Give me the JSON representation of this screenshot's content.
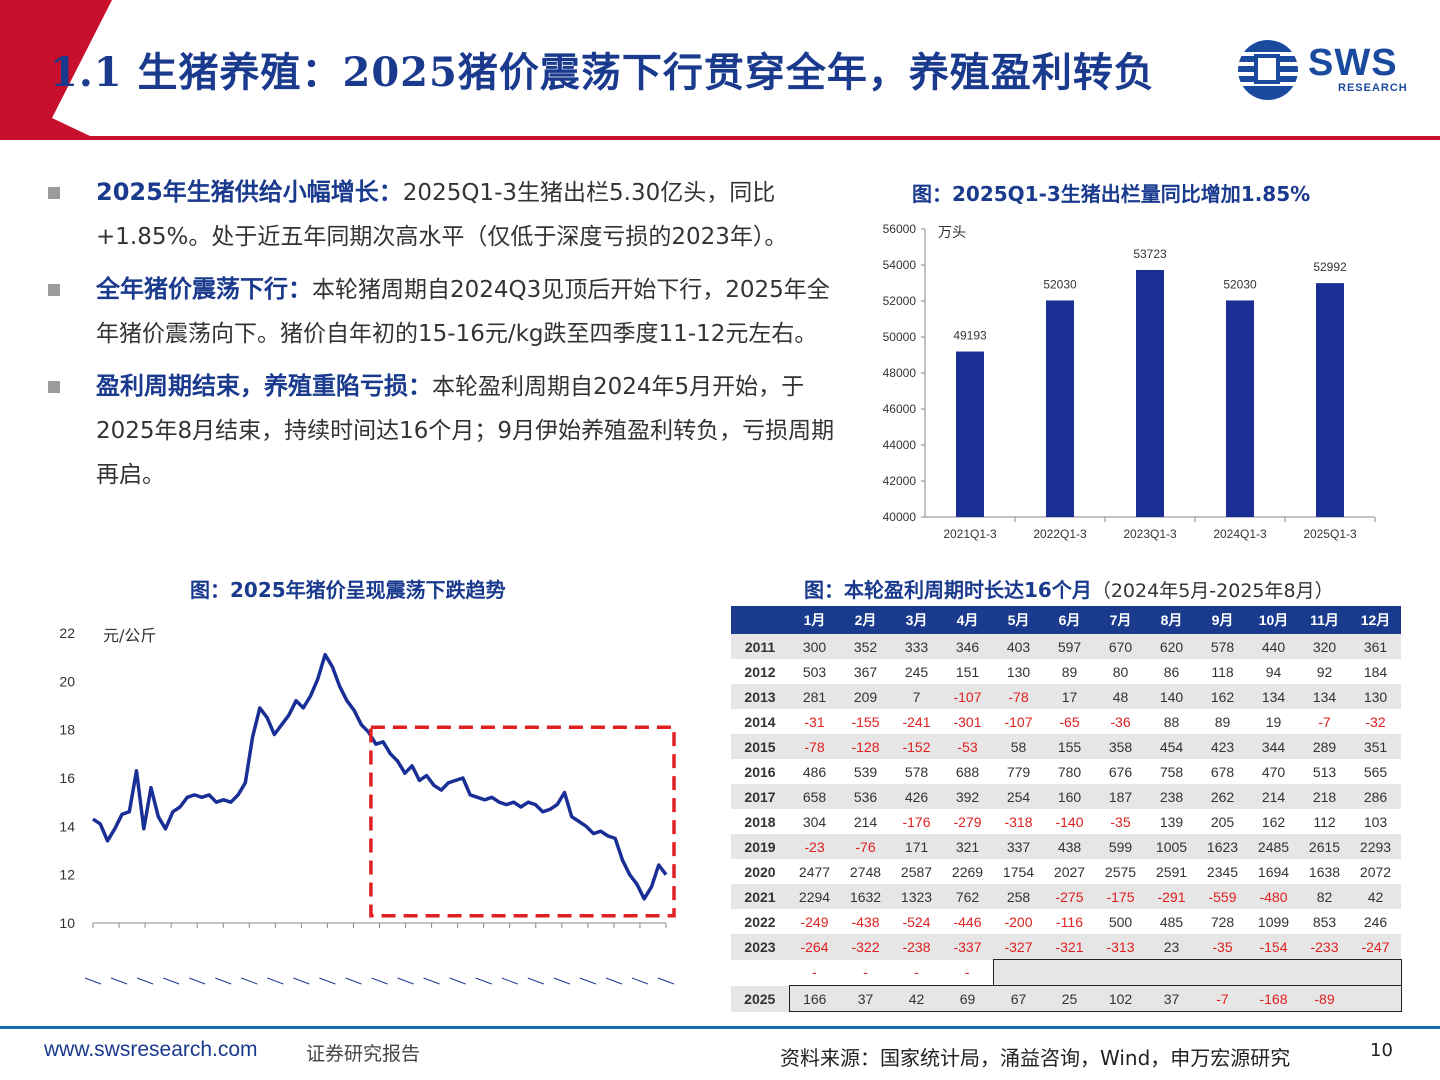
{
  "header": {
    "title": "1.1 生猪养殖：2025猪价震荡下行贯穿全年，养殖盈利转负",
    "logo_text": "SWS",
    "logo_sub": "RESEARCH",
    "colors": {
      "accent_red": "#c8102e",
      "brand_blue": "#1a3a8e"
    }
  },
  "bullets": [
    {
      "highlight": "2025年生猪供给小幅增长：",
      "text": "2025Q1-3生猪出栏5.30亿头，同比+1.85%。处于近五年同期次高水平（仅低于深度亏损的2023年）。"
    },
    {
      "highlight": "全年猪价震荡下行：",
      "text": "本轮猪周期自2024Q3见顶后开始下行，2025年全年猪价震荡向下。猪价自年初的15-16元/kg跌至四季度11-12元左右。"
    },
    {
      "highlight": "盈利周期结束，养殖重陷亏损：",
      "text": "本轮盈利周期自2024年5月开始，于2025年8月结束，持续时间达16个月；9月伊始养殖盈利转负，亏损周期再启。"
    }
  ],
  "charts": {
    "bar_title": "图：2025Q1-3生猪出栏量同比增加1.85%",
    "line_title": "图：2025年猪价呈现震荡下跌趋势",
    "table_title": "图：本轮盈利周期时长达16个月",
    "table_subtitle": "（2024年5月-2025年8月）"
  },
  "chart_data": [
    {
      "type": "bar",
      "categories": [
        "2021Q1-3",
        "2022Q1-3",
        "2023Q1-3",
        "2024Q1-3",
        "2025Q1-3"
      ],
      "values": [
        49193,
        52030,
        53723,
        52030,
        52992
      ],
      "ylabel": "万头",
      "ylim": [
        40000,
        56000
      ],
      "yticks": [
        40000,
        42000,
        44000,
        46000,
        48000,
        50000,
        52000,
        54000,
        56000
      ],
      "bar_color": "#1a2f96"
    },
    {
      "type": "line",
      "ylabel": "元/公斤",
      "ylim": [
        10,
        22
      ],
      "yticks": [
        10,
        12,
        14,
        16,
        18,
        20,
        22
      ],
      "line_color": "#1a2f96",
      "highlight_box_color": "#e02020",
      "y": [
        14.3,
        14.1,
        13.4,
        13.9,
        14.5,
        14.6,
        16.3,
        13.9,
        15.6,
        14.4,
        13.9,
        14.6,
        14.8,
        15.2,
        15.3,
        15.2,
        15.3,
        15.0,
        15.1,
        15.0,
        15.3,
        15.8,
        17.7,
        18.9,
        18.5,
        17.8,
        18.2,
        18.6,
        19.2,
        18.9,
        19.4,
        20.1,
        21.1,
        20.6,
        19.8,
        19.2,
        18.8,
        18.2,
        17.9,
        17.4,
        17.5,
        17.0,
        16.7,
        16.2,
        16.5,
        15.9,
        16.1,
        15.7,
        15.5,
        15.8,
        15.9,
        16.0,
        15.3,
        15.2,
        15.1,
        15.2,
        15.0,
        14.9,
        15.0,
        14.8,
        15.0,
        14.9,
        14.6,
        14.7,
        14.9,
        15.4,
        14.4,
        14.2,
        14.0,
        13.7,
        13.8,
        13.6,
        13.5,
        12.6,
        12.0,
        11.6,
        11.0,
        11.5,
        12.4,
        12.0
      ]
    },
    {
      "type": "table",
      "columns": [
        "",
        "1月",
        "2月",
        "3月",
        "4月",
        "5月",
        "6月",
        "7月",
        "8月",
        "9月",
        "10月",
        "11月",
        "12月"
      ],
      "rows": [
        [
          "2011",
          "300",
          "352",
          "333",
          "346",
          "403",
          "597",
          "670",
          "620",
          "578",
          "440",
          "320",
          "361"
        ],
        [
          "2012",
          "503",
          "367",
          "245",
          "151",
          "130",
          "89",
          "80",
          "86",
          "118",
          "94",
          "92",
          "184"
        ],
        [
          "2013",
          "281",
          "209",
          "7",
          "-107",
          "-78",
          "17",
          "48",
          "140",
          "162",
          "134",
          "134",
          "130"
        ],
        [
          "2014",
          "-31",
          "-155",
          "-241",
          "-301",
          "-107",
          "-65",
          "-36",
          "88",
          "89",
          "19",
          "-7",
          "-32"
        ],
        [
          "2015",
          "-78",
          "-128",
          "-152",
          "-53",
          "58",
          "155",
          "358",
          "454",
          "423",
          "344",
          "289",
          "351"
        ],
        [
          "2016",
          "486",
          "539",
          "578",
          "688",
          "779",
          "780",
          "676",
          "758",
          "678",
          "470",
          "513",
          "565"
        ],
        [
          "2017",
          "658",
          "536",
          "426",
          "392",
          "254",
          "160",
          "187",
          "238",
          "262",
          "214",
          "218",
          "286"
        ],
        [
          "2018",
          "304",
          "214",
          "-176",
          "-279",
          "-318",
          "-140",
          "-35",
          "139",
          "205",
          "162",
          "112",
          "103"
        ],
        [
          "2019",
          "-23",
          "-76",
          "171",
          "321",
          "337",
          "438",
          "599",
          "1005",
          "1623",
          "2485",
          "2615",
          "2293"
        ],
        [
          "2020",
          "2477",
          "2748",
          "2587",
          "2269",
          "1754",
          "2027",
          "2575",
          "2591",
          "2345",
          "1694",
          "1638",
          "2072"
        ],
        [
          "2021",
          "2294",
          "1632",
          "1323",
          "762",
          "258",
          "-275",
          "-175",
          "-291",
          "-559",
          "-480",
          "82",
          "42"
        ],
        [
          "2022",
          "-249",
          "-438",
          "-524",
          "-446",
          "-200",
          "-116",
          "500",
          "485",
          "728",
          "1099",
          "853",
          "246"
        ],
        [
          "2023",
          "-264",
          "-322",
          "-238",
          "-337",
          "-327",
          "-321",
          "-313",
          "23",
          "-35",
          "-154",
          "-233",
          "-247"
        ],
        [
          "",
          "-",
          "-",
          "-",
          "-",
          "",
          "",
          "",
          "",
          "",
          "",
          "",
          ""
        ],
        [
          "2025",
          "166",
          "37",
          "42",
          "69",
          "67",
          "25",
          "102",
          "37",
          "-7",
          "-168",
          "-89",
          ""
        ]
      ]
    }
  ],
  "footer": {
    "site": "www.swsresearch.com",
    "report": "证券研究报告",
    "source": "资料来源：国家统计局，涌益咨询，Wind，申万宏源研究",
    "page": "10"
  }
}
